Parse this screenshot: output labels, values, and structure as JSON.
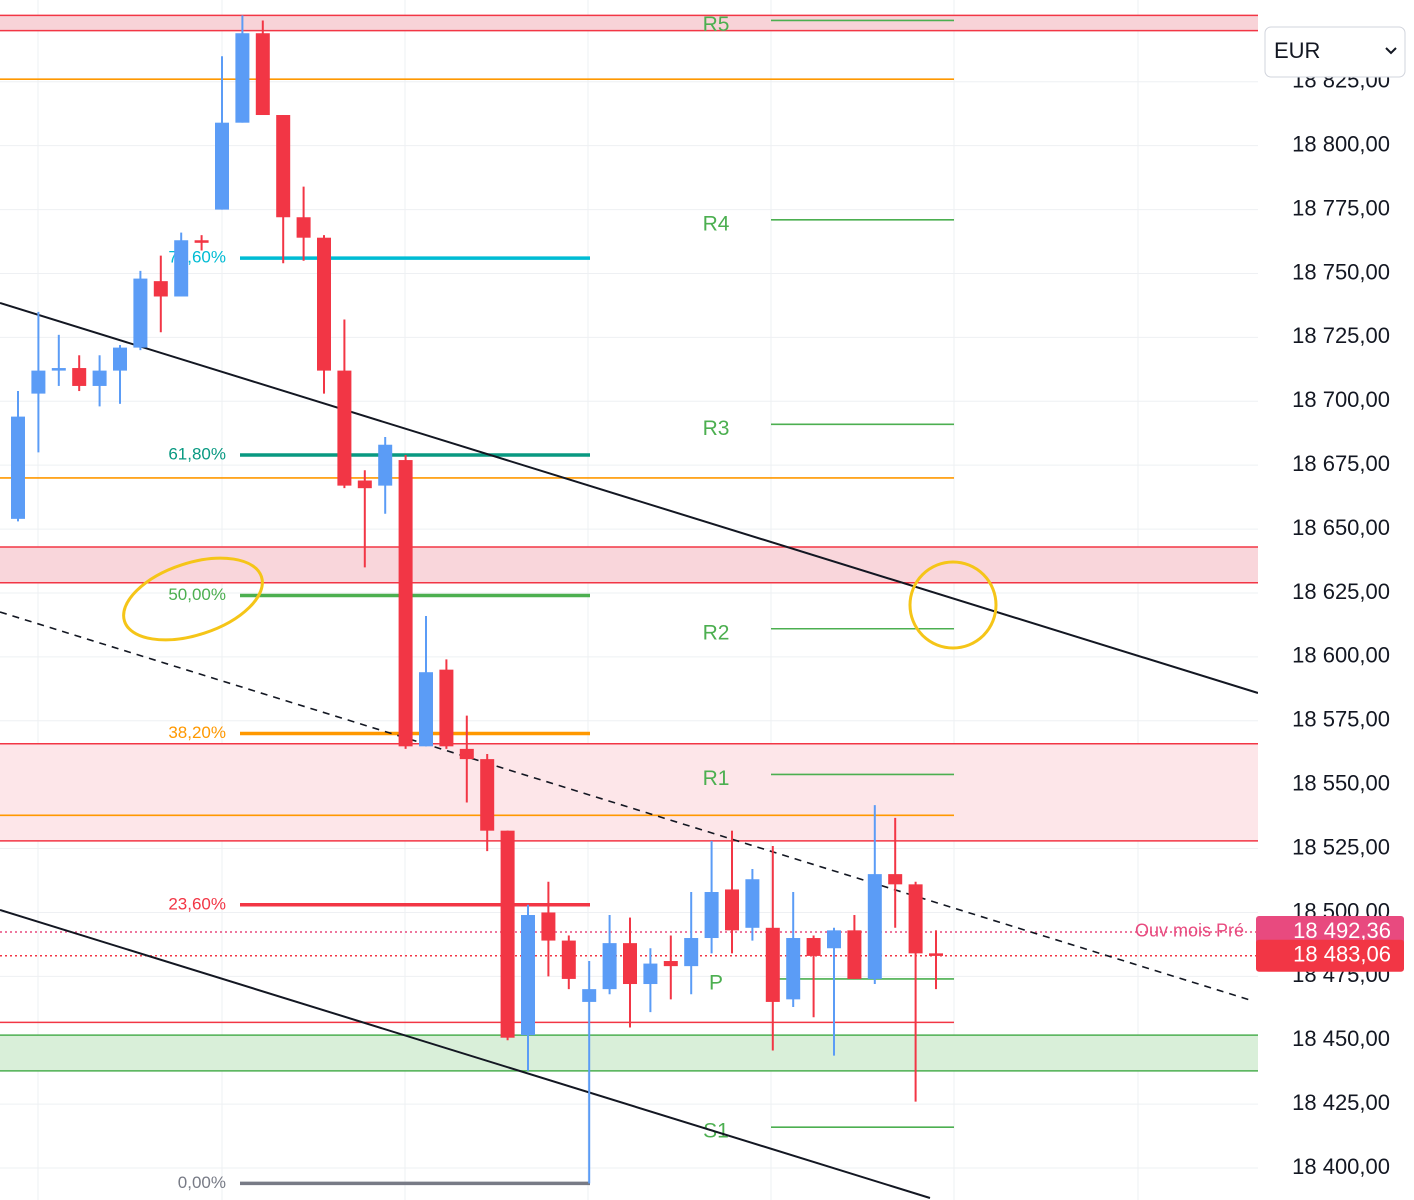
{
  "chart_data": {
    "type": "candlestick",
    "currency": "EUR",
    "up_color": "#5b9cf6",
    "down_color": "#f23645",
    "open": [
      18654,
      18703,
      18712,
      18713,
      18706,
      18712,
      18721,
      18747,
      18741,
      18763,
      18775,
      18809,
      18844,
      18812,
      18772,
      18764,
      18712,
      18669,
      18667,
      18677,
      18565,
      18595,
      18564,
      18560,
      18532,
      18452,
      18500,
      18489,
      18465,
      18470,
      18488,
      18472,
      18481,
      18479,
      18490,
      18509,
      18494,
      18494,
      18466,
      18490,
      18486,
      18493,
      18474,
      18515,
      18511,
      18484
    ],
    "high": [
      18704,
      18735,
      18726,
      18718,
      18718,
      18722,
      18751,
      18757,
      18766,
      18765,
      18835,
      18851,
      18849,
      18812,
      18784,
      18765,
      18732,
      18673,
      18686,
      18679,
      18616,
      18599,
      18577,
      18562,
      18532,
      18503,
      18512,
      18491,
      18481,
      18499,
      18498,
      18486,
      18491,
      18508,
      18528,
      18532,
      18517,
      18526,
      18508,
      18491,
      18494,
      18499,
      18542,
      18537,
      18512,
      18493
    ],
    "low": [
      18653,
      18680,
      18706,
      18704,
      18698,
      18699,
      18720,
      18727,
      18741,
      18759,
      18775,
      18809,
      18812,
      18754,
      18755,
      18703,
      18666,
      18635,
      18656,
      18564,
      18565,
      18564,
      18543,
      18524,
      18450,
      18438,
      18475,
      18470,
      18394,
      18468,
      18455,
      18461,
      18466,
      18468,
      18484,
      18484,
      18489,
      18446,
      18463,
      18459,
      18444,
      18474,
      18472,
      18494,
      18426,
      18470
    ],
    "close": [
      18694,
      18712,
      18713,
      18706,
      18712,
      18721,
      18748,
      18741,
      18763,
      18762,
      18809,
      18844,
      18812,
      18772,
      18764,
      18712,
      18667,
      18666,
      18683,
      18565,
      18594,
      18565,
      18560,
      18532,
      18451,
      18499,
      18489,
      18474,
      18470,
      18488,
      18472,
      18480,
      18479,
      18490,
      18508,
      18493,
      18513,
      18465,
      18490,
      18483,
      18493,
      18474,
      18515,
      18511,
      18484,
      18483
    ],
    "ylim": [
      18387.5,
      18857
    ],
    "yticks": [
      {
        "value": 18400,
        "label": "18 400,00"
      },
      {
        "value": 18425,
        "label": "18 425,00"
      },
      {
        "value": 18450,
        "label": "18 450,00"
      },
      {
        "value": 18475,
        "label": "18 475,00"
      },
      {
        "value": 18500,
        "label": "18 500,00"
      },
      {
        "value": 18525,
        "label": "18 525,00"
      },
      {
        "value": 18550,
        "label": "18 550,00"
      },
      {
        "value": 18575,
        "label": "18 575,00"
      },
      {
        "value": 18600,
        "label": "18 600,00"
      },
      {
        "value": 18625,
        "label": "18 625,00"
      },
      {
        "value": 18650,
        "label": "18 650,00"
      },
      {
        "value": 18675,
        "label": "18 675,00"
      },
      {
        "value": 18700,
        "label": "18 700,00"
      },
      {
        "value": 18725,
        "label": "18 725,00"
      },
      {
        "value": 18750,
        "label": "18 750,00"
      },
      {
        "value": 18775,
        "label": "18 775,00"
      },
      {
        "value": 18800,
        "label": "18 800,00"
      },
      {
        "value": 18825,
        "label": "18 825,00"
      }
    ],
    "grid": true,
    "zones": [
      {
        "from": 18845,
        "to": 18851,
        "color": "#f8d3d8"
      },
      {
        "from": 18629,
        "to": 18643,
        "color": "#f9d6db"
      },
      {
        "from": 18528,
        "to": 18566,
        "color": "#fde6e9"
      },
      {
        "from": 18438,
        "to": 18452,
        "color": "#d9efd9",
        "border": "#4caf50"
      }
    ],
    "lines": [
      {
        "value": 18826,
        "color": "#ff9800"
      },
      {
        "value": 18670,
        "color": "#ff9800"
      },
      {
        "value": 18538,
        "color": "#ff9800"
      },
      {
        "value": 18457,
        "color": "#f23645"
      }
    ],
    "fib_levels": [
      {
        "label": "78,60%",
        "value": 18756,
        "color": "#00bcd4"
      },
      {
        "label": "61,80%",
        "value": 18679,
        "color": "#089981"
      },
      {
        "label": "50,00%",
        "value": 18624,
        "color": "#4caf50"
      },
      {
        "label": "38,20%",
        "value": 18570,
        "color": "#ff9800"
      },
      {
        "label": "23,60%",
        "value": 18503,
        "color": "#f23645"
      },
      {
        "label": "0,00%",
        "value": 18394,
        "color": "#787b86"
      }
    ],
    "pivots": [
      {
        "label": "R5",
        "value": 18849
      },
      {
        "label": "R4",
        "value": 18771
      },
      {
        "label": "R3",
        "value": 18691
      },
      {
        "label": "R2",
        "value": 18611
      },
      {
        "label": "R1",
        "value": 18554
      },
      {
        "label": "P",
        "value": 18474
      },
      {
        "label": "S1",
        "value": 18416
      }
    ],
    "pivot_color": "#4caf50",
    "price_lines": [
      {
        "name": "Ouv mois Pré",
        "value": 18492.36,
        "label": "18 492,36",
        "color": "#e84a7f"
      },
      {
        "value": 18483.06,
        "label": "18 483,06",
        "color": "#f23645"
      }
    ]
  }
}
